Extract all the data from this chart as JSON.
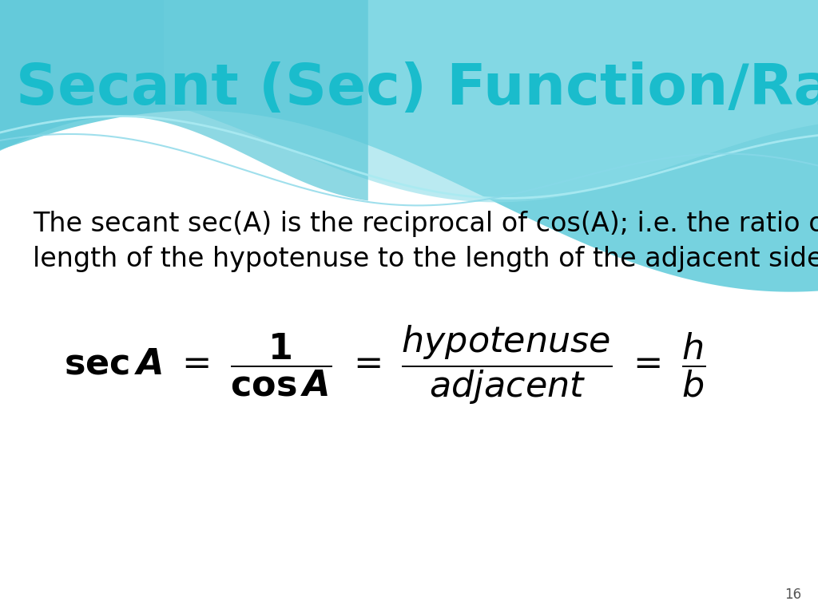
{
  "title": "Secant (Sec) Function/Ratio",
  "title_color": "#1ABCCC",
  "title_fontsize": 52,
  "body_text_line1": "The secant sec(A) is the reciprocal of cos(A); i.e. the ratio of the",
  "body_text_line2": "length of the hypotenuse to the length of the adjacent side.",
  "body_fontsize": 24,
  "body_color": "#000000",
  "formula_fontsize": 32,
  "formula_color": "#000000",
  "background_color": "#FFFFFF",
  "wave_color_main": "#5ECBDA",
  "wave_color_light": "#8DDDE8",
  "wave_line_color1": "#AAEAF2",
  "wave_line_color2": "#88D8E8",
  "page_number": "16",
  "page_number_fontsize": 12,
  "page_number_color": "#555555"
}
